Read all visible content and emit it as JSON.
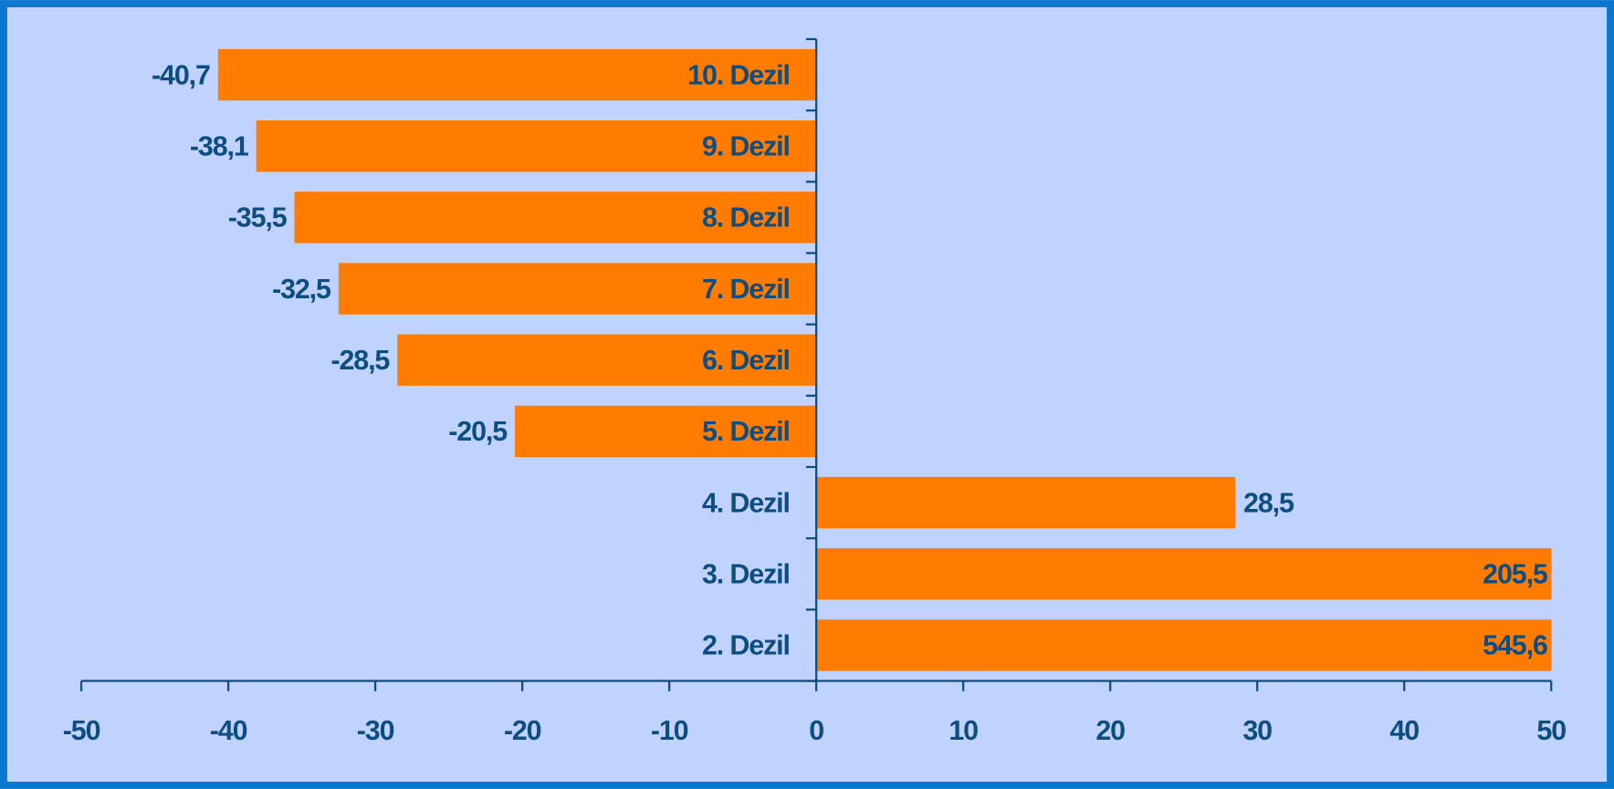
{
  "chart_data": {
    "type": "bar",
    "orientation": "horizontal",
    "categories": [
      "10. Dezil",
      "9. Dezil",
      "8. Dezil",
      "7. Dezil",
      "6. Dezil",
      "5. Dezil",
      "4. Dezil",
      "3. Dezil",
      "2. Dezil"
    ],
    "values": [
      -40.7,
      -38.1,
      -35.5,
      -32.5,
      -28.5,
      -20.5,
      28.5,
      205.5,
      545.6
    ],
    "value_labels": [
      "-40,7",
      "-38,1",
      "-35,5",
      "-32,5",
      "-28,5",
      "-20,5",
      "28,5",
      "205,5",
      "545,6"
    ],
    "color": "#ff7c00",
    "xlim": [
      -50,
      50
    ],
    "xticks": [
      -50,
      -40,
      -30,
      -20,
      -10,
      0,
      10,
      20,
      30,
      40,
      50
    ]
  }
}
